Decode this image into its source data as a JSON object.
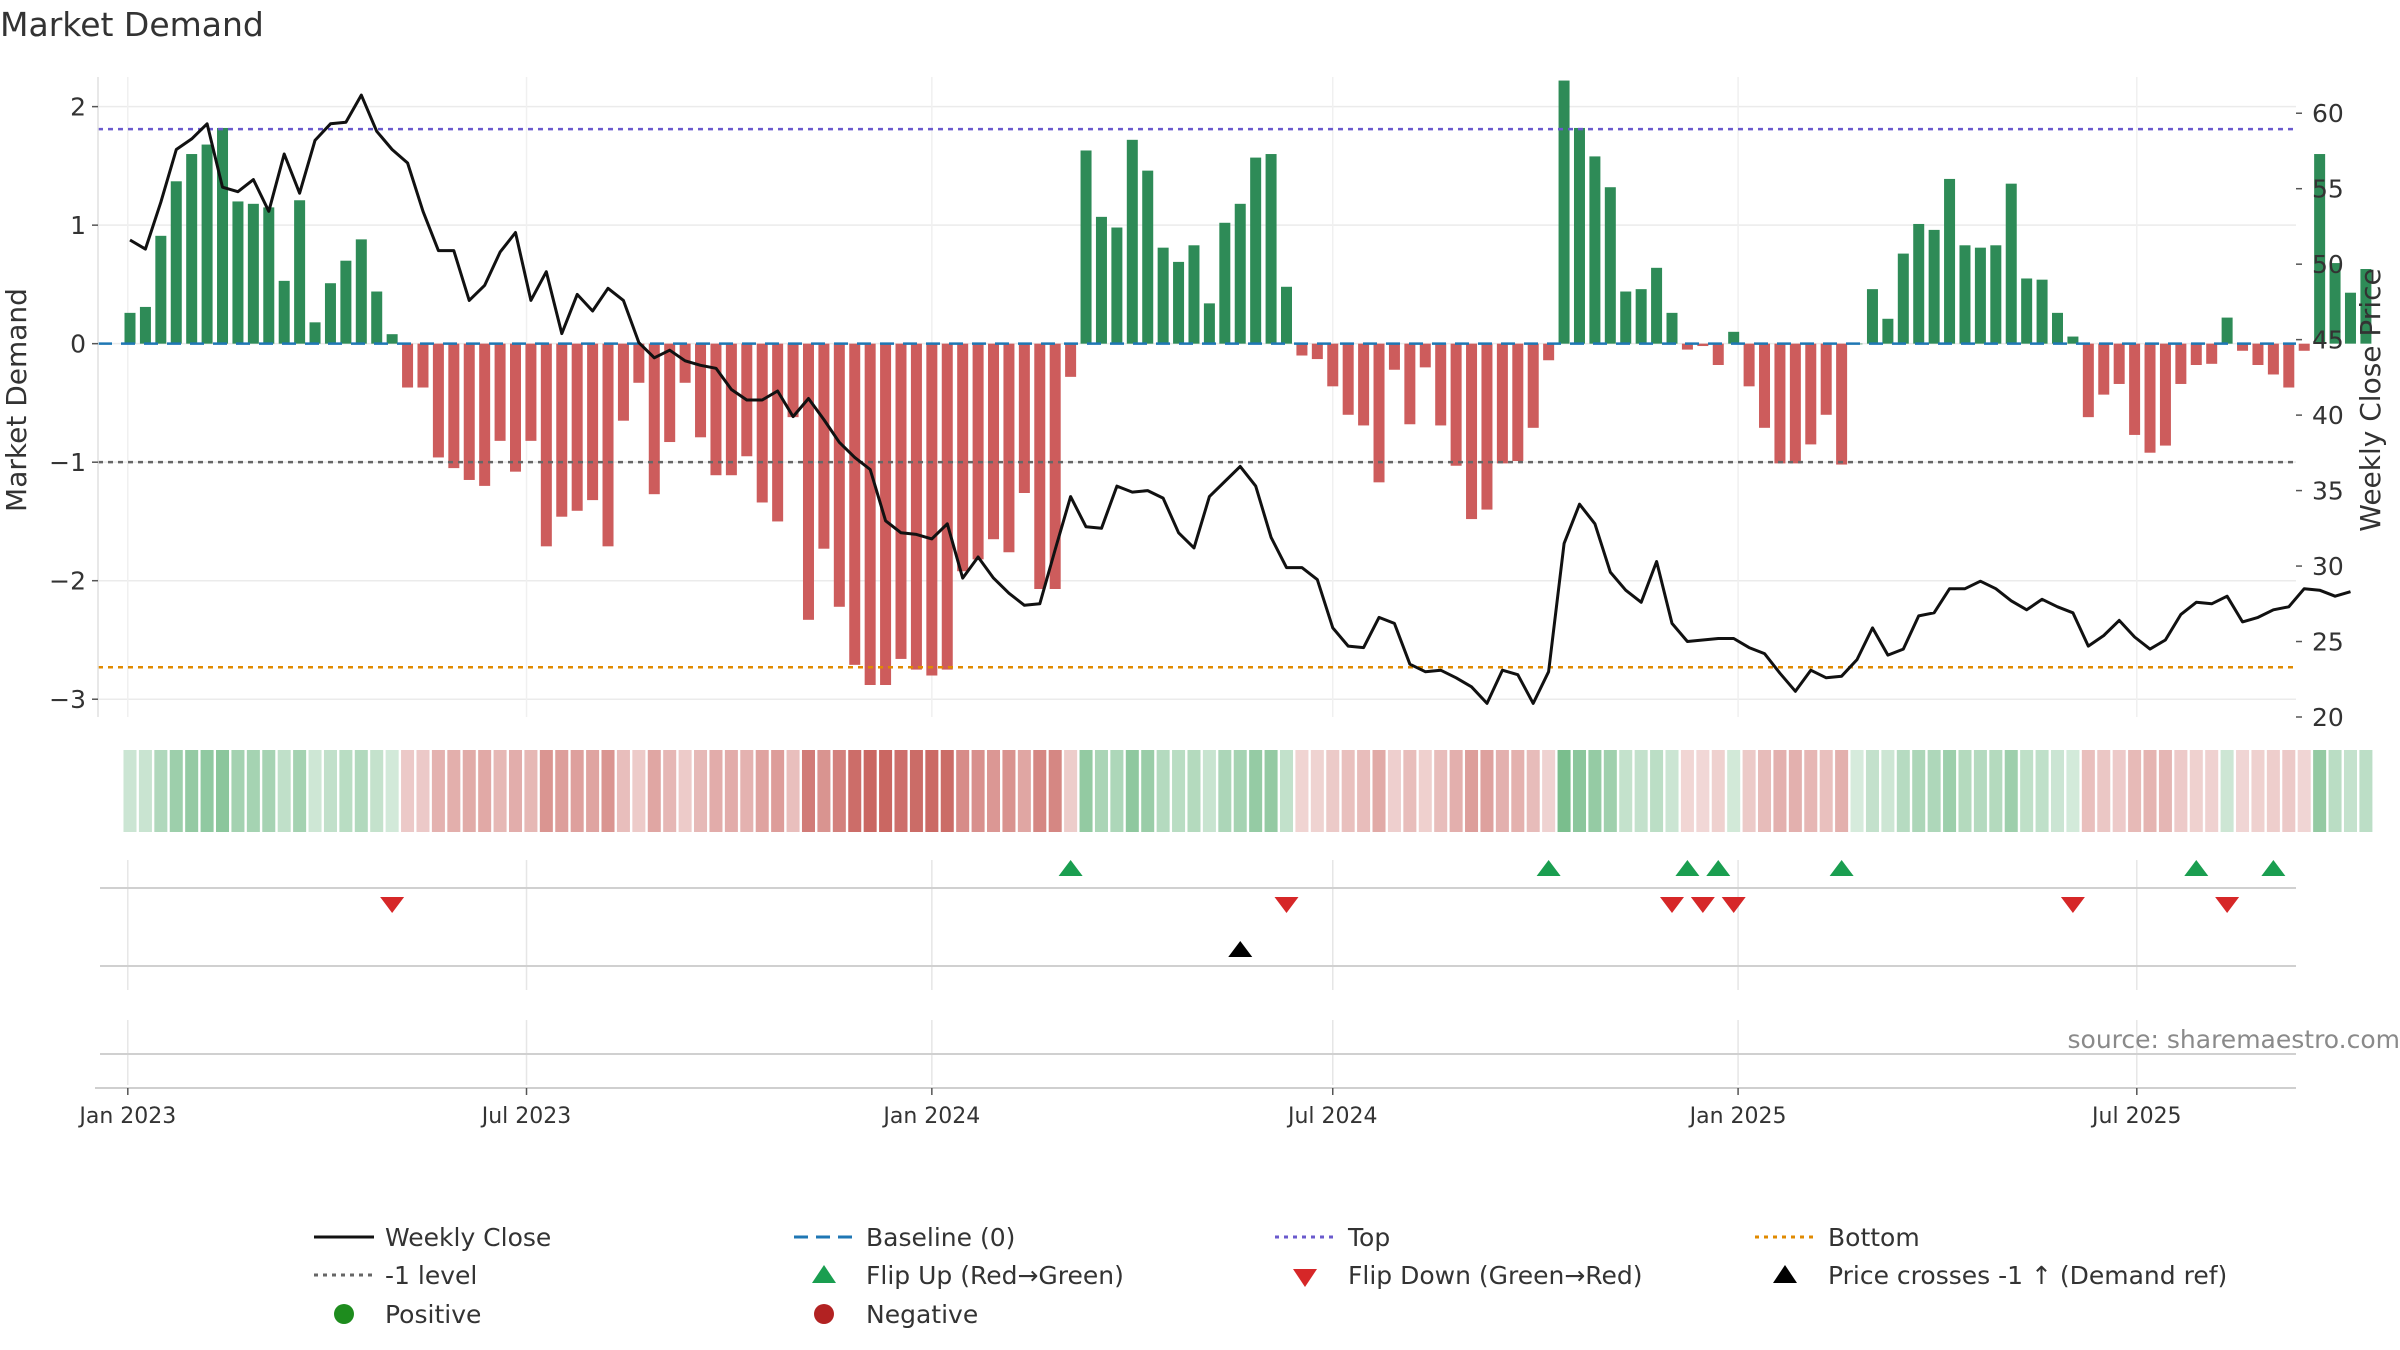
{
  "chart_data": {
    "type": "bar",
    "title": "Market Demand",
    "ylabel_left": "Market Demand",
    "ylabel_right": "Weekly Close Price",
    "source": "source: sharemaestro.com",
    "x_start": "2023-01-02",
    "x_step_days": 7,
    "x_ticks": [
      {
        "date": "2023-01-01",
        "label": "Jan 2023"
      },
      {
        "date": "2023-07-01",
        "label": "Jul 2023"
      },
      {
        "date": "2024-01-01",
        "label": "Jan 2024"
      },
      {
        "date": "2024-07-01",
        "label": "Jul 2024"
      },
      {
        "date": "2025-01-01",
        "label": "Jan 2025"
      },
      {
        "date": "2025-07-01",
        "label": "Jul 2025"
      }
    ],
    "left_axis": {
      "ylim": [
        -3.15,
        2.25
      ],
      "ticks": [
        -3,
        -2,
        -1,
        0,
        1,
        2
      ],
      "tick_labels": [
        "−3",
        "−2",
        "−1",
        "0",
        "1",
        "2"
      ]
    },
    "right_axis": {
      "ylim": [
        20,
        62.4
      ],
      "ticks": [
        20,
        25,
        30,
        35,
        40,
        45,
        50,
        55,
        60
      ],
      "tick_labels": [
        "20",
        "25",
        "30",
        "35",
        "40",
        "45",
        "50",
        "55",
        "60"
      ]
    },
    "reference_lines": {
      "top": 1.81,
      "bottom": -2.73,
      "minus_one": -1.0,
      "baseline": 0
    },
    "demand": [
      0.26,
      0.31,
      0.91,
      1.37,
      1.6,
      1.68,
      1.82,
      1.2,
      1.18,
      1.15,
      0.53,
      1.21,
      0.18,
      0.51,
      0.7,
      0.88,
      0.44,
      0.08,
      -0.37,
      -0.37,
      -0.96,
      -1.05,
      -1.15,
      -1.2,
      -0.82,
      -1.08,
      -0.82,
      -1.71,
      -1.46,
      -1.41,
      -1.32,
      -1.71,
      -0.65,
      -0.33,
      -1.27,
      -0.83,
      -0.33,
      -0.79,
      -1.11,
      -1.11,
      -0.95,
      -1.34,
      -1.5,
      -0.62,
      -2.33,
      -1.73,
      -2.22,
      -2.71,
      -2.88,
      -2.88,
      -2.66,
      -2.75,
      -2.8,
      -2.75,
      -1.92,
      -1.82,
      -1.65,
      -1.76,
      -1.26,
      -2.07,
      -2.07,
      -0.28,
      1.63,
      1.07,
      0.98,
      1.72,
      1.46,
      0.81,
      0.69,
      0.83,
      0.34,
      1.02,
      1.18,
      1.57,
      1.6,
      0.48,
      -0.1,
      -0.13,
      -0.36,
      -0.6,
      -0.69,
      -1.17,
      -0.22,
      -0.68,
      -0.2,
      -0.69,
      -1.03,
      -1.48,
      -1.4,
      -1.01,
      -0.99,
      -0.71,
      -0.14,
      2.22,
      1.82,
      1.58,
      1.32,
      0.44,
      0.46,
      0.64,
      0.26,
      -0.05,
      -0.02,
      -0.18,
      0.1,
      -0.36,
      -0.71,
      -1.01,
      -1.01,
      -0.85,
      -0.6,
      -1.02,
      0.0,
      0.46,
      0.21,
      0.76,
      1.01,
      0.96,
      1.39,
      0.83,
      0.81,
      0.83,
      1.35,
      0.55,
      0.54,
      0.26,
      0.06,
      -0.62,
      -0.43,
      -0.34,
      -0.77,
      -0.92,
      -0.86,
      -0.34,
      -0.18,
      -0.17,
      0.22,
      -0.06,
      -0.18,
      -0.26,
      -0.37,
      -0.06,
      1.6,
      0.68,
      0.43,
      0.63
    ],
    "weekly_close": [
      51.6,
      51.0,
      54.1,
      57.6,
      58.3,
      59.3,
      55.1,
      54.8,
      55.6,
      53.5,
      57.3,
      54.7,
      58.2,
      59.3,
      59.4,
      61.2,
      58.8,
      57.6,
      56.7,
      53.5,
      50.9,
      50.9,
      47.6,
      48.6,
      50.8,
      52.1,
      47.6,
      49.5,
      45.4,
      48.0,
      46.9,
      48.4,
      47.6,
      44.8,
      43.8,
      44.3,
      43.6,
      43.3,
      43.1,
      41.7,
      41.0,
      41.0,
      41.6,
      39.9,
      41.1,
      39.7,
      38.2,
      37.2,
      36.4,
      33.0,
      32.2,
      32.1,
      31.8,
      32.8,
      29.2,
      30.6,
      29.2,
      28.2,
      27.4,
      27.5,
      31.1,
      34.6,
      32.6,
      32.5,
      35.3,
      34.9,
      35.0,
      34.5,
      32.2,
      31.2,
      34.6,
      35.6,
      36.6,
      35.3,
      31.9,
      29.9,
      29.9,
      29.1,
      25.9,
      24.7,
      24.6,
      26.6,
      26.2,
      23.5,
      23.0,
      23.1,
      22.6,
      22.0,
      20.9,
      23.1,
      22.8,
      20.9,
      23.0,
      31.5,
      34.1,
      32.8,
      29.6,
      28.4,
      27.6,
      30.3,
      26.2,
      25.0,
      25.1,
      25.2,
      25.2,
      24.6,
      24.2,
      22.9,
      21.7,
      23.1,
      22.6,
      22.7,
      23.8,
      25.9,
      24.1,
      24.5,
      26.7,
      26.9,
      28.5,
      28.5,
      29.0,
      28.5,
      27.7,
      27.1,
      27.8,
      27.3,
      26.9,
      24.7,
      25.4,
      26.4,
      25.3,
      24.5,
      25.1,
      26.8,
      27.6,
      27.5,
      28.0,
      26.3,
      26.6,
      27.1,
      27.3,
      28.5,
      28.4,
      28.0,
      28.3
    ],
    "signals": {
      "flip_up_idx": [
        61,
        92,
        101,
        103,
        111,
        134,
        139
      ],
      "flip_down_idx": [
        17,
        75,
        100,
        102,
        104,
        126,
        136
      ],
      "price_cross_idx": [
        72
      ]
    },
    "colors": {
      "positive_bar": "#2e8b57",
      "negative_bar": "#cd5c5c",
      "price_line": "#111111",
      "baseline": "#1f77b4",
      "top": "#6a5acd",
      "bottom": "#e08a00",
      "minus_one": "#666666",
      "flip_up": "#1a9e50",
      "flip_down": "#d62728",
      "price_cross": "#000000",
      "positive_dot": "#1e8c1e",
      "negative_dot": "#b22222"
    },
    "legend": [
      {
        "key": "weekly_close",
        "label": "Weekly Close"
      },
      {
        "key": "baseline",
        "label": "Baseline (0)"
      },
      {
        "key": "top",
        "label": "Top"
      },
      {
        "key": "bottom",
        "label": "Bottom"
      },
      {
        "key": "minus_one",
        "label": "-1 level"
      },
      {
        "key": "flip_up",
        "label": "Flip Up (Red→Green)"
      },
      {
        "key": "flip_down",
        "label": "Flip Down (Green→Red)"
      },
      {
        "key": "price_cross",
        "label": "Price crosses -1 ↑ (Demand ref)"
      },
      {
        "key": "positive",
        "label": "Positive"
      },
      {
        "key": "negative",
        "label": "Negative"
      }
    ]
  }
}
